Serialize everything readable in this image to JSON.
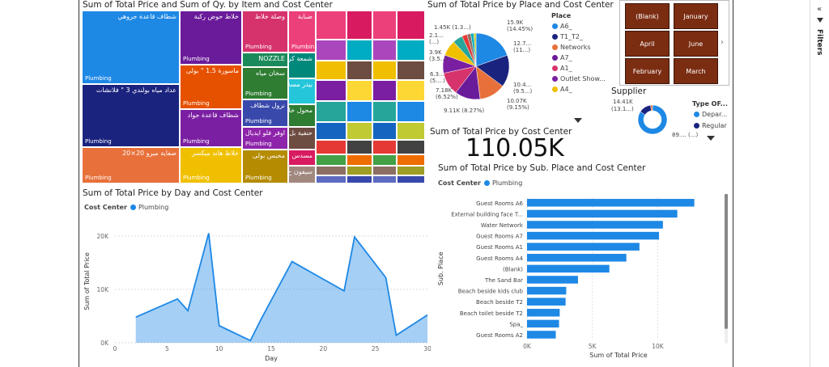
{
  "treemap": {
    "title": "Sum of Total Price and Sum of Qy. by Item and Cost Center",
    "cells": [
      {
        "label": "شطاف قاعدة جروهي",
        "cc": "Plumbing",
        "color": "#1e88e5"
      },
      {
        "label": "عداد مياه بولندي 3 \" فلانشات",
        "cc": "Plumbing",
        "color": "#1a237e"
      },
      {
        "label": "صفاية ميرو 20×20",
        "cc": "Plumbing",
        "color": "#e8703a"
      },
      {
        "label": "خلاط حوض ركبة",
        "cc": "Plumbing",
        "color": "#6a1b9a"
      },
      {
        "label": "ماسورة 1.5 \" بولى",
        "cc": "Plumbing",
        "color": "#e65100"
      },
      {
        "label": "شطاف قاعدة جواد",
        "cc": "Plumbing",
        "color": "#7b1fa2"
      },
      {
        "label": "خلاط هاند ميكسر",
        "cc": "Plumbing",
        "color": "#f0c000"
      },
      {
        "label": "وصلة خلاط",
        "cc": "Plumbing",
        "color": "#d6336c"
      },
      {
        "label": "NOZZLE",
        "cc": "",
        "color": "#1b8a5a"
      },
      {
        "label": "سخان مياه",
        "cc": "Plumbing",
        "color": "#2e7d32"
      },
      {
        "label": "نرول شطاف",
        "cc": "Plumbing",
        "color": "#3949ab"
      },
      {
        "label": "اوفر فلو ايديال",
        "cc": "Plumbing",
        "color": "#8e24aa"
      },
      {
        "label": "محبس بولى",
        "cc": "Plumbing",
        "color": "#b58b00"
      },
      {
        "label": "ضبابة",
        "cc": "Plumbin...",
        "color": "#ec407a"
      },
      {
        "label": "شمعة كر",
        "cc": "",
        "color": "#00897b"
      },
      {
        "label": "بيدر مسد",
        "cc": "",
        "color": "#26c6da"
      },
      {
        "label": "محول خلاط",
        "cc": "",
        "color": "#2e7d32"
      },
      {
        "label": "حنفية بل",
        "cc": "",
        "color": "#6d4c41"
      },
      {
        "label": "مسدس",
        "cc": "",
        "color": "#d81b60"
      },
      {
        "label": "سيفون ح",
        "cc": "",
        "color": "#a1887f"
      }
    ]
  },
  "pie": {
    "title": "Sum of Total Price by Place and Cost Center",
    "legend_title": "Place",
    "legend": [
      {
        "name": "A6_",
        "color": "#1e88e5"
      },
      {
        "name": "T1_T2_",
        "color": "#1a237e"
      },
      {
        "name": "Networks",
        "color": "#e8703a"
      },
      {
        "name": "A7_",
        "color": "#6a1b9a"
      },
      {
        "name": "A1_",
        "color": "#d6336c"
      },
      {
        "name": "Outlet Show...",
        "color": "#7b1fa2"
      },
      {
        "name": "A4_",
        "color": "#f0c000"
      }
    ],
    "labels": [
      {
        "text": "15.9K",
        "sub": "(14.45%)"
      },
      {
        "text": "12.7...",
        "sub": "(11...)"
      },
      {
        "text": "10.4...",
        "sub": "(9.5...)"
      },
      {
        "text": "10.07K",
        "sub": "(9.15%)"
      },
      {
        "text": "9.11K (8.27%)",
        "sub": ""
      },
      {
        "text": "7.18K",
        "sub": "(6.52%)"
      },
      {
        "text": "6.3...",
        "sub": "(5....)"
      },
      {
        "text": "3.9K",
        "sub": "(3.5...)"
      },
      {
        "text": "2.1...",
        "sub": "(...)"
      },
      {
        "text": "1.45K (1.3...)",
        "sub": ""
      }
    ]
  },
  "slicer": {
    "buttons": [
      "(Blank)",
      "January",
      "April",
      "June",
      "February",
      "March"
    ]
  },
  "card": {
    "title": "Sum of Total Price by Cost Center",
    "value": "110.05K"
  },
  "supplier": {
    "title": "Supplier",
    "legend_title": "Type OF...",
    "legend": [
      {
        "name": "Depar...",
        "color": "#1e88e5"
      },
      {
        "name": "Regular",
        "color": "#1a237e"
      }
    ],
    "label_left": "14.41K",
    "label_left_sub": "(13.1...)",
    "label_right": "89.... (...)"
  },
  "line_chart": {
    "title": "Sum of Total Price by Day and Cost Center",
    "legend_title": "Cost Center",
    "legend_item": "Plumbing"
  },
  "bar_chart": {
    "title": "Sum of Total Price by Sub. Place and Cost Center",
    "legend_title": "Cost Center",
    "legend_item": "Plumbing"
  },
  "filters": {
    "label": "Filters"
  },
  "chart_data": [
    {
      "type": "area",
      "title": "Sum of Total Price by Day and Cost Center",
      "xlabel": "Day",
      "ylabel": "Sum of Total Price",
      "xlim": [
        0,
        30
      ],
      "ylim": [
        0,
        23000
      ],
      "xticks": [
        0,
        5,
        10,
        15,
        20,
        25,
        30
      ],
      "xtick_labels": [
        "0",
        "5",
        "10",
        "15",
        "20",
        "25",
        "30"
      ],
      "yticks": [
        0,
        10000,
        20000
      ],
      "ytick_labels": [
        "0K",
        "10K",
        "20K"
      ],
      "color": "#1e88e5",
      "x": [
        2,
        6,
        7,
        9,
        10,
        13,
        14,
        17,
        22,
        23,
        26,
        27,
        30
      ],
      "y": [
        4800,
        8200,
        6000,
        20500,
        3200,
        400,
        4300,
        15200,
        9700,
        19800,
        12200,
        1400,
        5200
      ]
    },
    {
      "type": "bar",
      "orientation": "horizontal",
      "title": "Sum of Total Price by Sub. Place and Cost Center",
      "xlabel": "Sum of Total Price",
      "ylabel": "Sub. Place",
      "xlim": [
        0,
        14000
      ],
      "xticks": [
        0,
        5000,
        10000
      ],
      "xtick_labels": [
        "0K",
        "5K",
        "10K"
      ],
      "color": "#1e88e5",
      "categories": [
        "Guest Rooms A6",
        "External building face T...",
        "Water Network",
        "Guest Rooms A7",
        "Guest Rooms A1",
        "Guest Rooms A4",
        "(Blank)",
        "The Sand Bar",
        "Beach beside kids club",
        "Beach beside T2",
        "Beach toilet beside T2",
        "Spa_",
        "Guest Rooms A2"
      ],
      "values": [
        12800,
        11500,
        10400,
        10100,
        8600,
        7600,
        6300,
        3900,
        3000,
        2950,
        2500,
        2450,
        2200
      ]
    },
    {
      "type": "pie",
      "title": "Sum of Total Price by Place and Cost Center",
      "categories": [
        "A6_",
        "T1_T2_",
        "Networks",
        "A7_",
        "A1_",
        "Outlet Show...",
        "A4_"
      ],
      "values": [
        15900,
        12700,
        10400,
        10070,
        9110,
        7180,
        6300
      ]
    },
    {
      "type": "pie",
      "title": "Supplier",
      "categories": [
        "Depar...",
        "Regular"
      ],
      "values": [
        89000,
        14410
      ]
    }
  ]
}
